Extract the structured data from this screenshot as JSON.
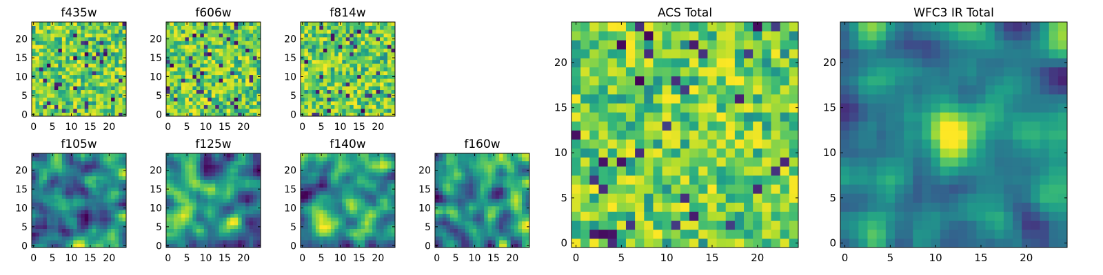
{
  "chart_data": [
    {
      "type": "heatmap",
      "title": "f435w",
      "xticks": [
        "0",
        "5",
        "10",
        "15",
        "20"
      ],
      "yticks": [
        "0",
        "5",
        "10",
        "15",
        "20"
      ],
      "xlim": [
        -0.5,
        24.5
      ],
      "ylim": [
        -0.5,
        24.5
      ],
      "grid_size": 25,
      "colormap": "viridis",
      "pattern": "noise",
      "seed": 11
    },
    {
      "type": "heatmap",
      "title": "f606w",
      "xticks": [
        "0",
        "5",
        "10",
        "15",
        "20"
      ],
      "yticks": [
        "0",
        "5",
        "10",
        "15",
        "20"
      ],
      "xlim": [
        -0.5,
        24.5
      ],
      "ylim": [
        -0.5,
        24.5
      ],
      "grid_size": 25,
      "colormap": "viridis",
      "pattern": "noise",
      "seed": 23
    },
    {
      "type": "heatmap",
      "title": "f814w",
      "xticks": [
        "0",
        "5",
        "10",
        "15",
        "20"
      ],
      "yticks": [
        "0",
        "5",
        "10",
        "15",
        "20"
      ],
      "xlim": [
        -0.5,
        24.5
      ],
      "ylim": [
        -0.5,
        24.5
      ],
      "grid_size": 25,
      "colormap": "viridis",
      "pattern": "noise",
      "seed": 37
    },
    {
      "type": "heatmap",
      "title": "f105w",
      "xticks": [
        "0",
        "5",
        "10",
        "15",
        "20"
      ],
      "yticks": [
        "0",
        "5",
        "10",
        "15",
        "20"
      ],
      "xlim": [
        -0.5,
        24.5
      ],
      "ylim": [
        -0.5,
        24.5
      ],
      "grid_size": 25,
      "colormap": "viridis",
      "pattern": "smooth",
      "seed": 41
    },
    {
      "type": "heatmap",
      "title": "f125w",
      "xticks": [
        "0",
        "5",
        "10",
        "15",
        "20"
      ],
      "yticks": [
        "0",
        "5",
        "10",
        "15",
        "20"
      ],
      "xlim": [
        -0.5,
        24.5
      ],
      "ylim": [
        -0.5,
        24.5
      ],
      "grid_size": 25,
      "colormap": "viridis",
      "pattern": "smooth",
      "seed": 53
    },
    {
      "type": "heatmap",
      "title": "f140w",
      "xticks": [
        "0",
        "5",
        "10",
        "15",
        "20"
      ],
      "yticks": [
        "0",
        "5",
        "10",
        "15",
        "20"
      ],
      "xlim": [
        -0.5,
        24.5
      ],
      "ylim": [
        -0.5,
        24.5
      ],
      "grid_size": 25,
      "colormap": "viridis",
      "pattern": "smooth",
      "seed": 67
    },
    {
      "type": "heatmap",
      "title": "f160w",
      "xticks": [
        "0",
        "5",
        "10",
        "15",
        "20"
      ],
      "yticks": [
        "0",
        "5",
        "10",
        "15",
        "20"
      ],
      "xlim": [
        -0.5,
        24.5
      ],
      "ylim": [
        -0.5,
        24.5
      ],
      "grid_size": 25,
      "colormap": "viridis",
      "pattern": "smooth",
      "seed": 79
    },
    {
      "type": "heatmap",
      "title": "ACS Total",
      "xticks": [
        "0",
        "5",
        "10",
        "15",
        "20"
      ],
      "yticks": [
        "0",
        "5",
        "10",
        "15",
        "20"
      ],
      "xlim": [
        -0.5,
        24.5
      ],
      "ylim": [
        -0.5,
        24.5
      ],
      "grid_size": 25,
      "colormap": "viridis",
      "pattern": "noise",
      "seed": 97
    },
    {
      "type": "heatmap",
      "title": "WFC3 IR Total",
      "xticks": [
        "0",
        "5",
        "10",
        "15",
        "20"
      ],
      "yticks": [
        "0",
        "5",
        "10",
        "15",
        "20"
      ],
      "xlim": [
        -0.5,
        24.5
      ],
      "ylim": [
        -0.5,
        24.5
      ],
      "grid_size": 25,
      "colormap": "viridis",
      "pattern": "smooth-peak",
      "peak": [
        12,
        12
      ],
      "seed": 113
    }
  ]
}
